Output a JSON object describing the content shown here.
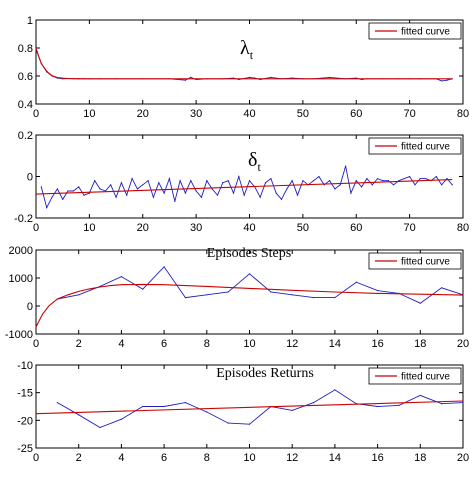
{
  "chart_data": [
    {
      "type": "line",
      "title": "λt",
      "title_main": "λ",
      "title_sub": "t",
      "xlim": [
        0,
        80
      ],
      "ylim": [
        0.4,
        1
      ],
      "xticks": [
        0,
        10,
        20,
        30,
        40,
        50,
        60,
        70,
        80
      ],
      "yticks": [
        0.4,
        0.6,
        0.8,
        1
      ],
      "ytick_labels": [
        "0.4",
        "0.6",
        "0.8",
        "1"
      ],
      "legend": "top-right",
      "grid": false,
      "series": [
        {
          "name": "",
          "color": "#1f1fbf",
          "x": [
            0,
            1,
            2,
            3,
            4,
            5,
            6,
            7,
            8,
            9,
            10,
            12,
            15,
            20,
            25,
            28,
            29,
            30,
            32,
            35,
            37,
            38,
            40,
            41,
            42,
            44,
            46,
            48,
            50,
            52,
            55,
            58,
            60,
            61,
            62,
            65,
            68,
            70,
            72,
            75,
            76,
            77,
            78
          ],
          "y": [
            0.79,
            0.69,
            0.63,
            0.6,
            0.585,
            0.58,
            0.582,
            0.58,
            0.58,
            0.58,
            0.58,
            0.58,
            0.58,
            0.58,
            0.58,
            0.57,
            0.59,
            0.575,
            0.58,
            0.58,
            0.585,
            0.575,
            0.59,
            0.585,
            0.575,
            0.59,
            0.58,
            0.585,
            0.58,
            0.58,
            0.59,
            0.58,
            0.585,
            0.575,
            0.58,
            0.58,
            0.58,
            0.58,
            0.58,
            0.58,
            0.565,
            0.57,
            0.58
          ]
        },
        {
          "name": "fitted curve",
          "color": "#cc0000",
          "x": [
            0,
            0.5,
            1,
            1.5,
            2,
            2.5,
            3,
            3.5,
            4,
            5,
            6,
            8,
            10,
            20,
            40,
            60,
            78
          ],
          "y": [
            0.8,
            0.74,
            0.69,
            0.66,
            0.635,
            0.617,
            0.603,
            0.595,
            0.589,
            0.584,
            0.582,
            0.581,
            0.58,
            0.58,
            0.58,
            0.58,
            0.58
          ]
        }
      ]
    },
    {
      "type": "line",
      "title": "δt",
      "title_main": "δ",
      "title_sub": "t",
      "xlim": [
        0,
        80
      ],
      "ylim": [
        -0.2,
        0.2
      ],
      "xticks": [
        0,
        10,
        20,
        30,
        40,
        50,
        60,
        70,
        80
      ],
      "yticks": [
        -0.2,
        0,
        0.2
      ],
      "ytick_labels": [
        "-0.2",
        "0",
        "0.2"
      ],
      "legend": "top-right",
      "grid": false,
      "series": [
        {
          "name": "",
          "color": "#1f1fbf",
          "x": [
            1,
            2,
            3,
            4,
            5,
            6,
            7,
            8,
            9,
            10,
            11,
            12,
            13,
            14,
            15,
            16,
            17,
            18,
            19,
            20,
            21,
            22,
            23,
            24,
            25,
            26,
            27,
            28,
            29,
            30,
            31,
            32,
            33,
            34,
            35,
            36,
            37,
            38,
            39,
            40,
            41,
            42,
            43,
            44,
            45,
            46,
            47,
            48,
            49,
            50,
            51,
            52,
            53,
            54,
            55,
            56,
            57,
            58,
            59,
            60,
            61,
            62,
            63,
            64,
            65,
            66,
            67,
            68,
            69,
            70,
            71,
            72,
            73,
            74,
            75,
            76,
            77,
            78
          ],
          "y": [
            -0.05,
            -0.15,
            -0.1,
            -0.06,
            -0.11,
            -0.07,
            -0.07,
            -0.05,
            -0.09,
            -0.08,
            -0.02,
            -0.06,
            -0.07,
            -0.04,
            -0.1,
            -0.03,
            -0.09,
            -0.01,
            -0.06,
            -0.04,
            -0.02,
            -0.1,
            -0.03,
            -0.08,
            -0.01,
            -0.12,
            -0.02,
            -0.08,
            -0.02,
            -0.07,
            -0.1,
            -0.02,
            -0.06,
            -0.09,
            -0.03,
            -0.02,
            -0.08,
            0.0,
            -0.09,
            -0.02,
            -0.05,
            -0.1,
            -0.03,
            -0.01,
            -0.08,
            -0.11,
            -0.06,
            -0.02,
            -0.09,
            -0.02,
            -0.04,
            -0.02,
            0.0,
            -0.04,
            -0.02,
            -0.06,
            -0.04,
            0.05,
            -0.08,
            -0.02,
            -0.05,
            -0.01,
            -0.04,
            -0.01,
            -0.02,
            -0.02,
            -0.04,
            -0.02,
            -0.01,
            0.0,
            -0.04,
            -0.01,
            -0.01,
            -0.02,
            0.0,
            -0.04,
            -0.01,
            -0.04
          ]
        },
        {
          "name": "fitted curve",
          "color": "#cc0000",
          "x": [
            0,
            78
          ],
          "y": [
            -0.085,
            -0.015
          ]
        }
      ]
    },
    {
      "type": "line",
      "title": "Episodes Steps",
      "xlim": [
        0,
        20
      ],
      "ylim": [
        -1000,
        2000
      ],
      "xticks": [
        0,
        2,
        4,
        6,
        8,
        10,
        12,
        14,
        16,
        18,
        20
      ],
      "yticks": [
        -1000,
        0,
        1000,
        2000
      ],
      "ytick_labels": [
        "-1000",
        "0",
        "1000",
        "2000"
      ],
      "legend": "top-right",
      "grid": false,
      "series": [
        {
          "name": "",
          "color": "#1f1fbf",
          "x": [
            1,
            2,
            3,
            4,
            5,
            6,
            7,
            8,
            9,
            10,
            11,
            12,
            13,
            14,
            15,
            16,
            17,
            18,
            19,
            20
          ],
          "y": [
            250,
            400,
            700,
            1050,
            600,
            1400,
            300,
            400,
            500,
            1150,
            500,
            400,
            300,
            300,
            850,
            550,
            450,
            100,
            650,
            400
          ]
        },
        {
          "name": "fitted curve",
          "color": "#cc0000",
          "x": [
            0,
            0.3,
            0.6,
            1,
            1.5,
            2,
            2.5,
            3,
            3.5,
            4,
            5,
            6,
            8,
            10,
            12,
            14,
            16,
            18,
            20
          ],
          "y": [
            -750,
            -300,
            0,
            250,
            400,
            520,
            610,
            680,
            730,
            760,
            770,
            760,
            700,
            630,
            560,
            500,
            450,
            420,
            390
          ]
        }
      ]
    },
    {
      "type": "line",
      "title": "Episodes Returns",
      "xlim": [
        0,
        20
      ],
      "ylim": [
        -25,
        -10
      ],
      "xticks": [
        0,
        2,
        4,
        6,
        8,
        10,
        12,
        14,
        16,
        18,
        20
      ],
      "yticks": [
        -25,
        -20,
        -15,
        -10
      ],
      "ytick_labels": [
        "-25",
        "-20",
        "-15",
        "-10"
      ],
      "legend": "top-right",
      "grid": false,
      "series": [
        {
          "name": "",
          "color": "#1f1fbf",
          "x": [
            1,
            2,
            3,
            4,
            5,
            6,
            7,
            8,
            9,
            10,
            11,
            12,
            13,
            14,
            15,
            16,
            17,
            18,
            19,
            20
          ],
          "y": [
            -16.8,
            -19,
            -21.3,
            -19.8,
            -17.5,
            -17.5,
            -16.8,
            -18.5,
            -20.5,
            -20.7,
            -17.5,
            -18.2,
            -16.8,
            -14.5,
            -17,
            -17.5,
            -17.3,
            -15.5,
            -17,
            -16.8
          ]
        },
        {
          "name": "fitted curve",
          "color": "#cc0000",
          "x": [
            0,
            20
          ],
          "y": [
            -18.8,
            -16.5
          ]
        }
      ]
    }
  ]
}
